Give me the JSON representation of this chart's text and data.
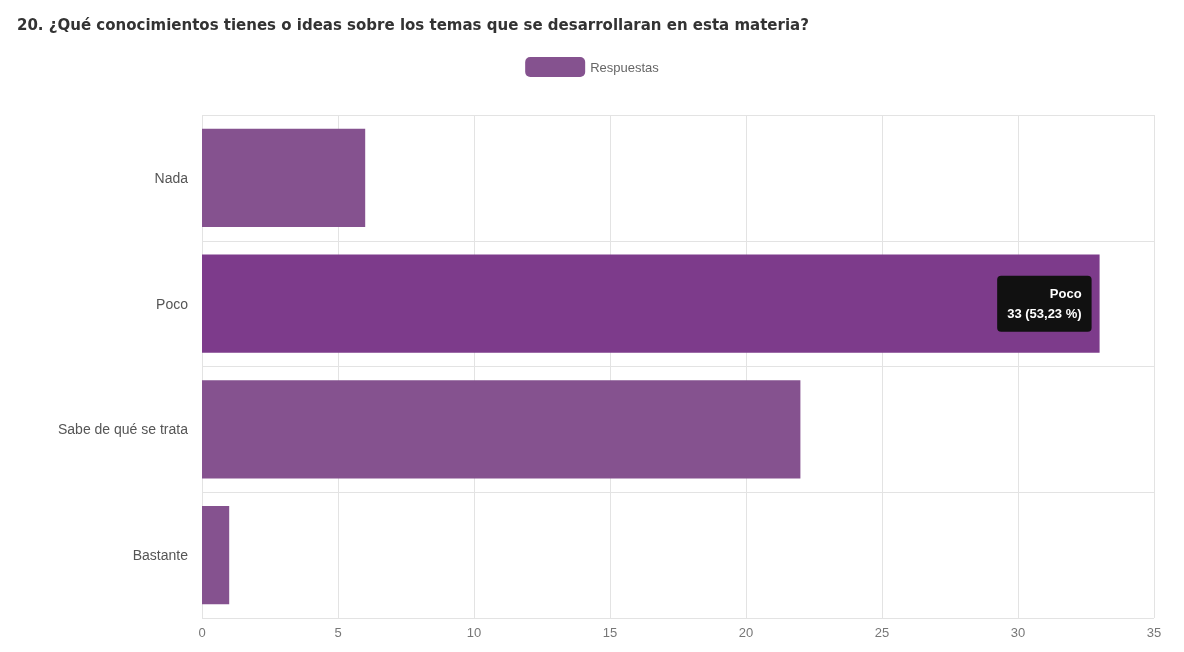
{
  "chart_data": {
    "type": "bar",
    "orientation": "horizontal",
    "title": "20. ¿Qué conocimientos tienes o ideas sobre los temas que se desarrollaran en esta materia?",
    "categories": [
      "Nada",
      "Poco",
      "Sabe de qué se trata",
      "Bastante"
    ],
    "series": [
      {
        "name": "Respuestas",
        "color": "#85528f",
        "colors": [
          "#85528f",
          "#7d3b8b",
          "#85528f",
          "#85528f"
        ],
        "values": [
          6,
          33,
          22,
          1
        ]
      }
    ],
    "xlim": [
      0,
      35
    ],
    "xticks": [
      0,
      5,
      10,
      15,
      20,
      25,
      30,
      35
    ],
    "grid": true,
    "legend": "top",
    "annotations": [
      {
        "text": "Poco\n33 (53,23 %)",
        "x": 33,
        "y": "Poco"
      }
    ]
  }
}
